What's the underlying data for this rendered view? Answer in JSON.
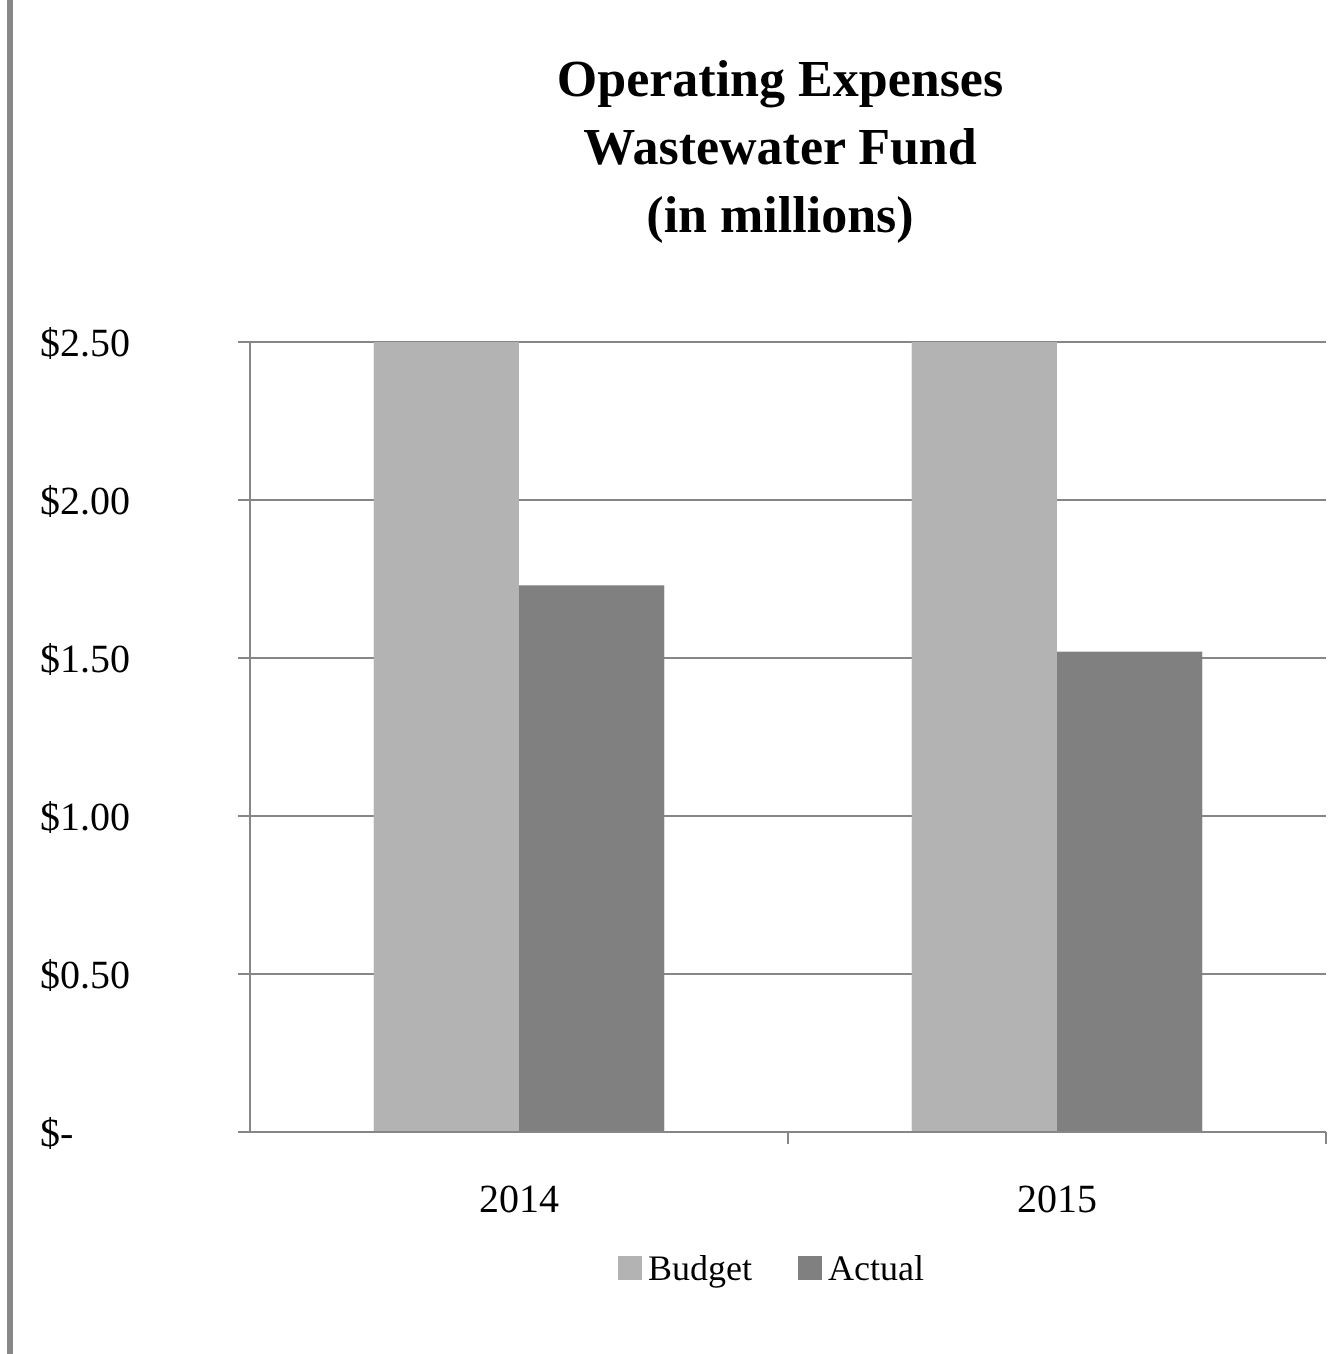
{
  "chart_data": {
    "type": "bar",
    "title": "Operating Expenses\nWastewater Fund\n(in millions)",
    "categories": [
      "2014",
      "2015"
    ],
    "series": [
      {
        "name": "Budget",
        "color": "#b3b3b3",
        "values": [
          2.5,
          2.5
        ]
      },
      {
        "name": "Actual",
        "color": "#808080",
        "values": [
          1.73,
          1.52
        ]
      }
    ],
    "ylim": [
      0,
      2.5
    ],
    "yticks": [
      {
        "value": 0,
        "label": "$-"
      },
      {
        "value": 0.5,
        "label": "$0.50"
      },
      {
        "value": 1,
        "label": "$1.00"
      },
      {
        "value": 1.5,
        "label": "$1.50"
      },
      {
        "value": 2,
        "label": "$2.00"
      },
      {
        "value": 2.5,
        "label": "$2.50"
      }
    ],
    "grid": "y",
    "legend": "bottom"
  }
}
